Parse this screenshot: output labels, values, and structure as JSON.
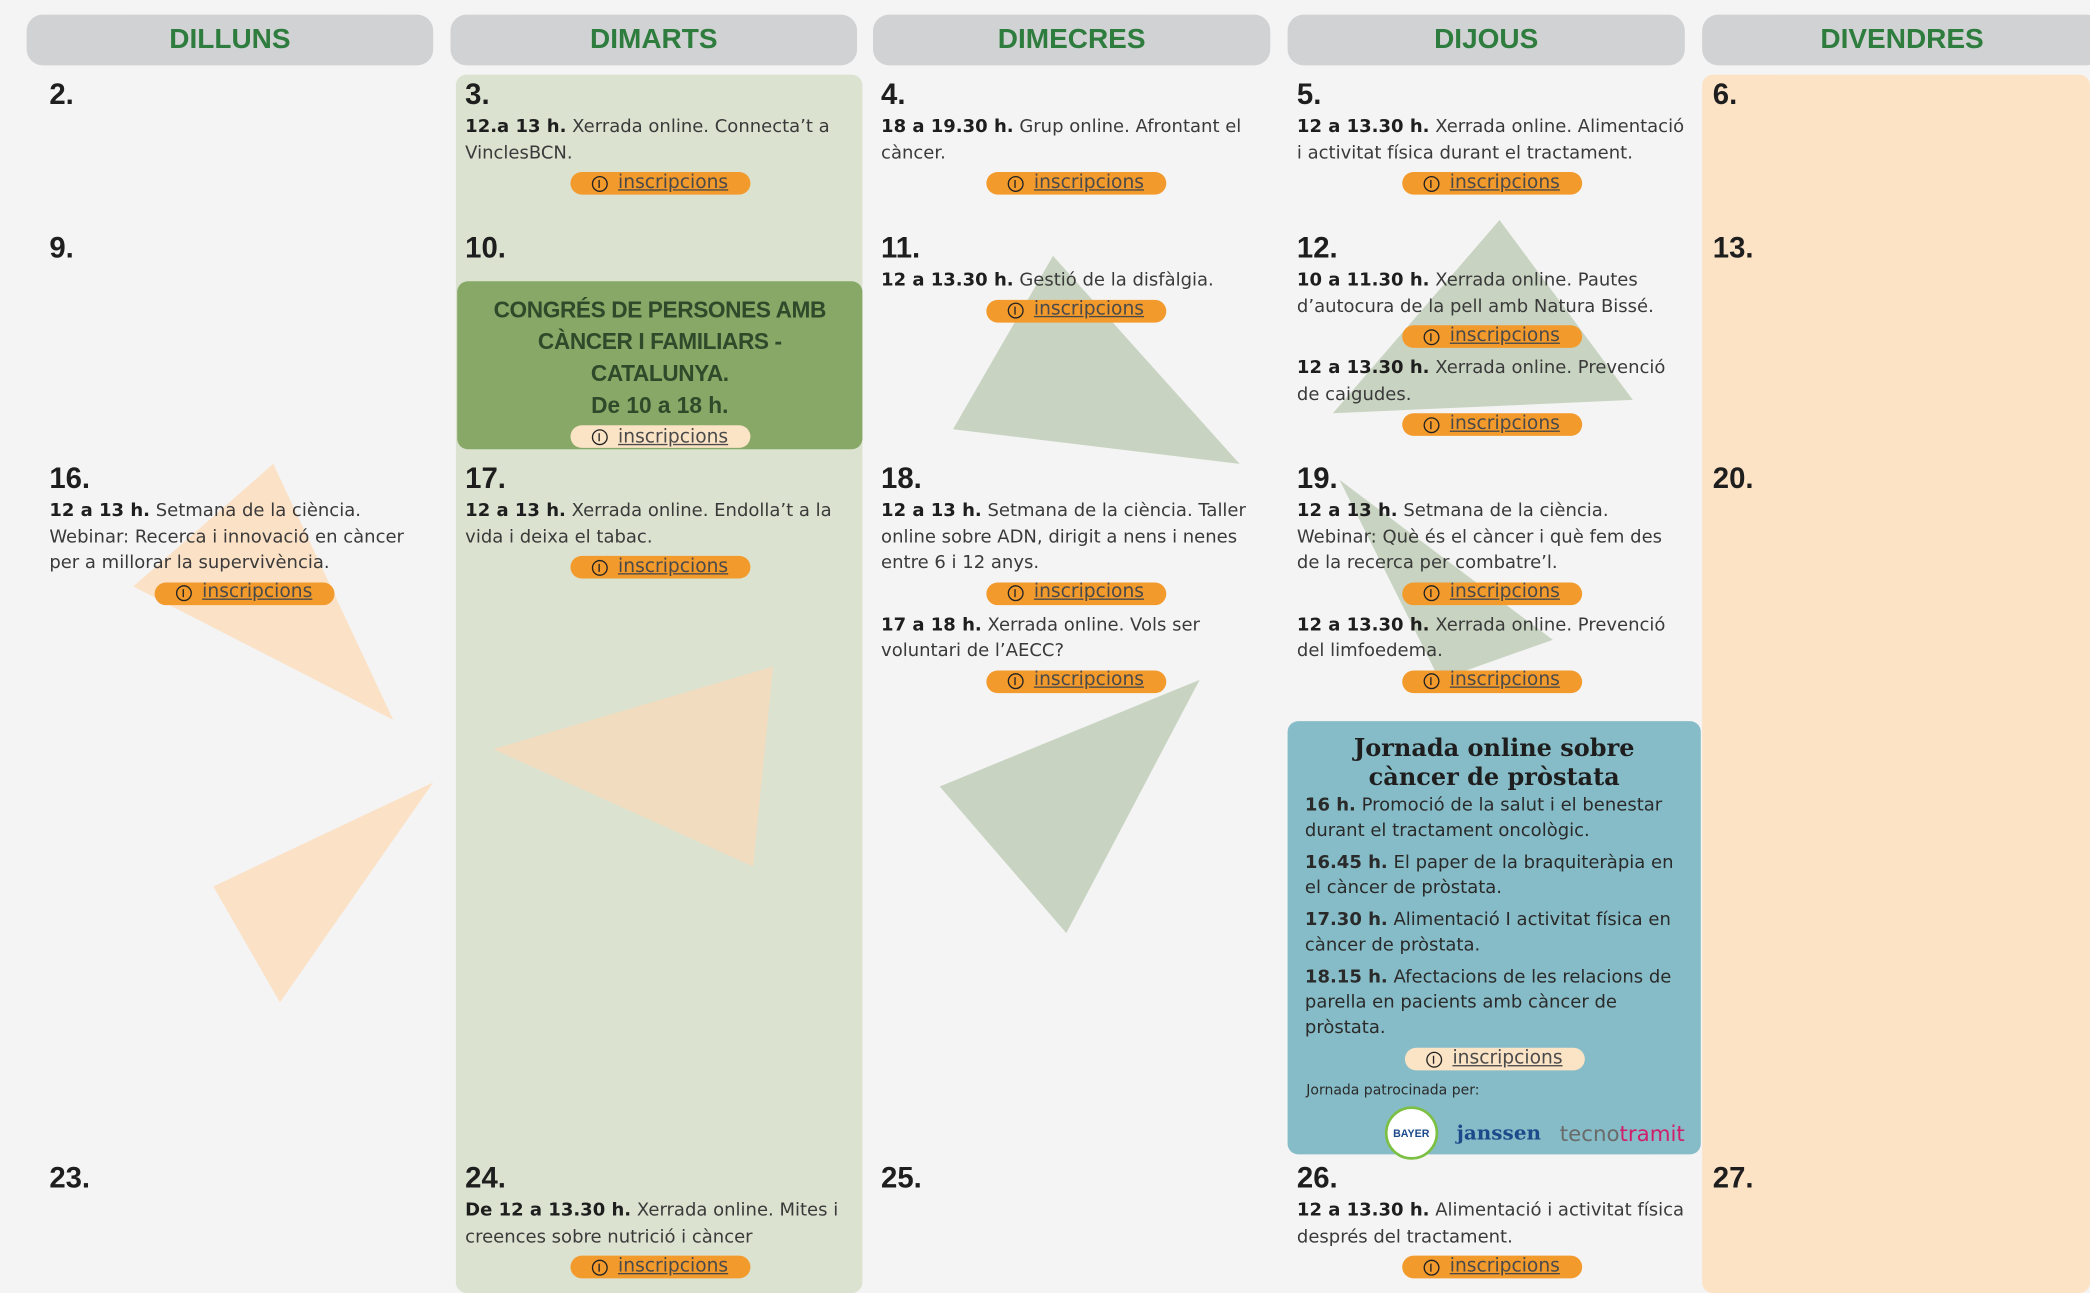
{
  "weekdays": [
    "DILLUNS",
    "DIMARTS",
    "DIMECRES",
    "DIJOUS",
    "DIVENDRES"
  ],
  "days": [
    {
      "number": "2.",
      "events": []
    },
    {
      "number": "3.",
      "events": [
        {
          "time": "12.a 13 h.",
          "text": "Xerrada online. Connecta’t a VinclesBCN.",
          "link": "inscripcions"
        }
      ]
    },
    {
      "number": "4.",
      "events": [
        {
          "time": "18 a 19.30 h.",
          "text": "Grup online. Afrontant el càncer.",
          "link": "inscripcions"
        }
      ]
    },
    {
      "number": "5.",
      "events": [
        {
          "time": "12 a 13.30 h.",
          "text": "Xerrada online. Alimentació i activitat física durant el tractament.",
          "link": "inscripcions"
        }
      ]
    },
    {
      "number": "6.",
      "events": []
    },
    {
      "number": "9.",
      "events": []
    },
    {
      "number": "10.",
      "events": []
    },
    {
      "number": "11.",
      "events": [
        {
          "time": "12 a 13.30 h.",
          "text": "Gestió de la disfàlgia.",
          "link": "inscripcions"
        }
      ]
    },
    {
      "number": "12.",
      "events": [
        {
          "time": "10 a 11.30 h.",
          "text": "Xerrada online. Pautes d’autocura de la pell amb Natura Bissé.",
          "link": "inscripcions"
        },
        {
          "time": "12 a 13.30 h.",
          "text": "Xerrada online. Prevenció de caigudes.",
          "link": "inscripcions"
        }
      ]
    },
    {
      "number": "13.",
      "events": []
    },
    {
      "number": "16.",
      "events": [
        {
          "time": "12 a 13 h.",
          "text": "Setmana de la ciència. Webinar: Recerca i innovació en càncer per a millorar la supervivència.",
          "link": "inscripcions"
        }
      ]
    },
    {
      "number": "17.",
      "events": [
        {
          "time": "12 a 13 h.",
          "text": "Xerrada online. Endolla’t a la vida i deixa el tabac.",
          "link": "inscripcions"
        }
      ]
    },
    {
      "number": "18.",
      "events": [
        {
          "time": "12 a 13 h.",
          "text": "Setmana de la ciència. Taller online sobre ADN, dirigit a nens i nenes entre 6 i 12 anys.",
          "link": "inscripcions"
        },
        {
          "time": "17 a 18 h.",
          "text": "Xerrada online. Vols ser voluntari de l’AECC?",
          "link": "inscripcions"
        }
      ]
    },
    {
      "number": "19.",
      "events": [
        {
          "time": "12 a 13 h.",
          "text": "Setmana de la ciència. Webinar: Què és el càncer i què fem des de la recerca per combatre’l.",
          "link": "inscripcions"
        },
        {
          "time": "12 a 13.30 h.",
          "text": "Xerrada online. Prevenció del limfoedema.",
          "link": "inscripcions"
        }
      ]
    },
    {
      "number": "20.",
      "events": []
    },
    {
      "number": "23.",
      "events": []
    },
    {
      "number": "24.",
      "events": [
        {
          "time": "De 12 a 13.30 h.",
          "text": "Xerrada online. Mites i creences sobre nutrició i càncer",
          "link": "inscripcions"
        }
      ]
    },
    {
      "number": "25.",
      "events": []
    },
    {
      "number": "26.",
      "events": [
        {
          "time": "12 a 13.30 h.",
          "text": "Alimentació i activitat física després del tractament.",
          "link": "inscripcions"
        }
      ]
    },
    {
      "number": "27.",
      "events": []
    }
  ],
  "congress": {
    "title": "CONGRÉS DE PERSONES AMB CÀNCER I FAMILIARS - CATALUNYA.",
    "time": "De 10 a 18 h.",
    "link": "inscripcions"
  },
  "jornada": {
    "title": "Jornada online sobre càncer de pròstata",
    "talks": [
      {
        "time": "16 h.",
        "text": "Promoció de la salut i el benestar durant el tractament oncològic."
      },
      {
        "time": "16.45 h.",
        "text": "El paper de la braquiteràpia en el càncer de pròstata."
      },
      {
        "time": "17.30 h.",
        "text": "Alimentació I activitat física en càncer de pròstata."
      },
      {
        "time": "18.15 h.",
        "text": "Afectacions de les relacions de parella en pacients amb càncer de pròstata."
      }
    ],
    "link": "inscripcions",
    "sponsor_note": "Jornada patrocinada per:",
    "sponsors": [
      "BAYER",
      "janssen",
      "tecno",
      "tramit"
    ]
  }
}
